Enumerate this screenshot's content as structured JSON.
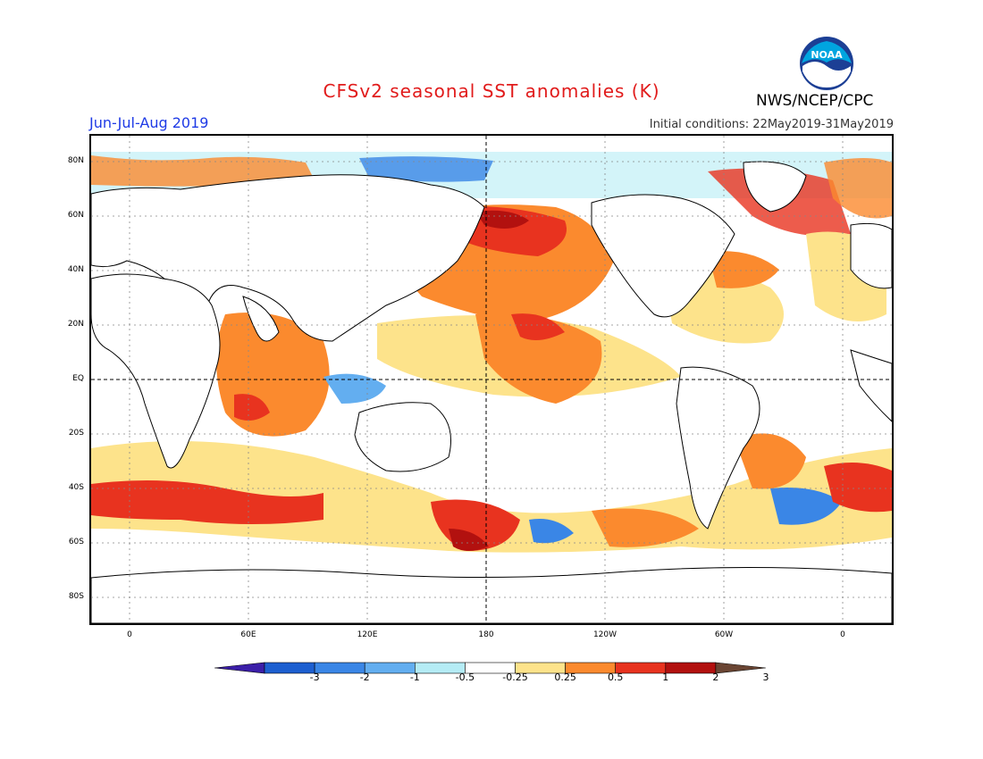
{
  "title": "CFSv2 seasonal SST anomalies (K)",
  "period": "Jun-Jul-Aug 2019",
  "org": "NWS/NCEP/CPC",
  "logo_text": "NOAA",
  "init_conditions": "Initial conditions: 22May2019-31May2019",
  "lat_labels": [
    "80N",
    "60N",
    "40N",
    "20N",
    "EQ",
    "20S",
    "40S",
    "60S",
    "80S"
  ],
  "lon_labels": [
    "0",
    "60E",
    "120E",
    "180",
    "120W",
    "60W",
    "0"
  ],
  "colorbar": {
    "labels": [
      "-3",
      "-2",
      "-1",
      "-0.5",
      "-0.25",
      "0.25",
      "0.5",
      "1",
      "2",
      "3"
    ],
    "colors": [
      "#3b1ea8",
      "#1d5fd0",
      "#3a86e6",
      "#63aef0",
      "#b5ecf5",
      "#ffffff",
      "#fde38b",
      "#fb8a2e",
      "#e8331f",
      "#b2110f",
      "#6a4533"
    ]
  }
}
